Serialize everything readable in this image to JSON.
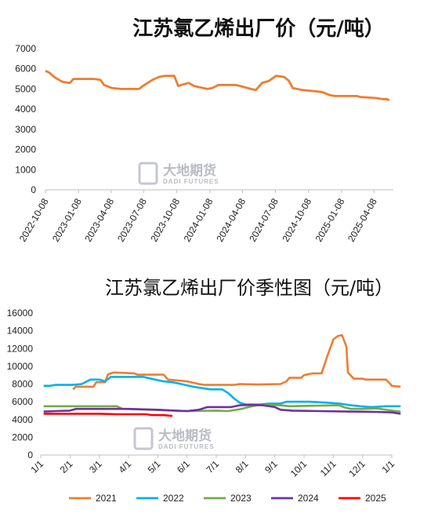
{
  "watermark": {
    "cn": "大地期货",
    "en": "DADI FUTURES"
  },
  "chart_data": [
    {
      "type": "line",
      "title": "江苏氯乙烯出厂价（元/吨）",
      "ylim": [
        0,
        7000
      ],
      "yticks": [
        "0",
        "1000",
        "2000",
        "3000",
        "4000",
        "5000",
        "6000",
        "7000"
      ],
      "xlim": [
        "2022-10-08",
        "2025-06-01"
      ],
      "xticks": [
        "2022-10-08",
        "2023-01-08",
        "2023-04-08",
        "2023-07-08",
        "2023-10-08",
        "2024-01-08",
        "2024-04-08",
        "2024-07-08",
        "2024-10-08",
        "2025-01-08",
        "2025-04-08"
      ],
      "grid": false,
      "color": "#ed7d31",
      "points": [
        [
          "2022-10-08",
          5900
        ],
        [
          "2022-10-20",
          5800
        ],
        [
          "2022-11-01",
          5600
        ],
        [
          "2022-11-15",
          5450
        ],
        [
          "2022-11-25",
          5350
        ],
        [
          "2022-12-15",
          5300
        ],
        [
          "2022-12-25",
          5500
        ],
        [
          "2023-02-20",
          5500
        ],
        [
          "2023-03-10",
          5450
        ],
        [
          "2023-03-20",
          5200
        ],
        [
          "2023-04-10",
          5050
        ],
        [
          "2023-05-05",
          5000
        ],
        [
          "2023-06-25",
          5000
        ],
        [
          "2023-07-10",
          5200
        ],
        [
          "2023-08-01",
          5450
        ],
        [
          "2023-08-20",
          5600
        ],
        [
          "2023-09-05",
          5650
        ],
        [
          "2023-10-01",
          5650
        ],
        [
          "2023-10-12",
          5150
        ],
        [
          "2023-10-20",
          5200
        ],
        [
          "2023-11-10",
          5300
        ],
        [
          "2023-11-25",
          5150
        ],
        [
          "2024-01-01",
          5000
        ],
        [
          "2024-01-15",
          5050
        ],
        [
          "2024-02-01",
          5200
        ],
        [
          "2024-03-20",
          5200
        ],
        [
          "2024-04-01",
          5150
        ],
        [
          "2024-05-01",
          5000
        ],
        [
          "2024-05-15",
          4950
        ],
        [
          "2024-06-01",
          5300
        ],
        [
          "2024-06-20",
          5400
        ],
        [
          "2024-07-10",
          5650
        ],
        [
          "2024-08-01",
          5600
        ],
        [
          "2024-08-15",
          5400
        ],
        [
          "2024-08-25",
          5050
        ],
        [
          "2024-09-20",
          4950
        ],
        [
          "2024-10-20",
          4900
        ],
        [
          "2024-11-15",
          4850
        ],
        [
          "2024-12-05",
          4700
        ],
        [
          "2024-12-20",
          4650
        ],
        [
          "2025-02-20",
          4650
        ],
        [
          "2025-03-01",
          4600
        ],
        [
          "2025-04-15",
          4550
        ],
        [
          "2025-05-01",
          4500
        ],
        [
          "2025-05-15",
          4500
        ],
        [
          "2025-05-20",
          4420
        ]
      ]
    },
    {
      "type": "line",
      "title": "江苏氯乙烯出厂价季性图（元/吨）",
      "ylim": [
        0,
        16000
      ],
      "yticks": [
        "0",
        "2000",
        "4000",
        "6000",
        "8000",
        "10000",
        "12000",
        "14000",
        "16000"
      ],
      "categories": [
        "1/1",
        "2/1",
        "3/1",
        "4/1",
        "5/1",
        "6/1",
        "7/1",
        "8/1",
        "9/1",
        "10/1",
        "11/1",
        "12/1",
        "1/1"
      ],
      "grid": false,
      "legend": "bottom",
      "series": [
        {
          "name": "2021",
          "color": "#ed7d31",
          "points": [
            [
              1.1,
              7400
            ],
            [
              1.2,
              7700
            ],
            [
              1.8,
              7700
            ],
            [
              1.9,
              8200
            ],
            [
              2.2,
              8200
            ],
            [
              2.3,
              9100
            ],
            [
              2.5,
              9300
            ],
            [
              3.2,
              9200
            ],
            [
              3.3,
              9050
            ],
            [
              4.2,
              9050
            ],
            [
              4.35,
              8500
            ],
            [
              5.0,
              8300
            ],
            [
              5.4,
              8000
            ],
            [
              5.6,
              7900
            ],
            [
              6.6,
              7900
            ],
            [
              6.8,
              8000
            ],
            [
              7.4,
              7950
            ],
            [
              8.2,
              8000
            ],
            [
              8.4,
              8300
            ],
            [
              8.5,
              8700
            ],
            [
              8.9,
              8700
            ],
            [
              9.0,
              9000
            ],
            [
              9.3,
              9200
            ],
            [
              9.6,
              9200
            ],
            [
              9.8,
              11200
            ],
            [
              10.0,
              13000
            ],
            [
              10.15,
              13400
            ],
            [
              10.3,
              13500
            ],
            [
              10.45,
              12200
            ],
            [
              10.5,
              9300
            ],
            [
              10.7,
              8600
            ],
            [
              11.0,
              8600
            ],
            [
              11.1,
              8500
            ],
            [
              11.8,
              8500
            ],
            [
              11.95,
              8000
            ],
            [
              12.0,
              7800
            ],
            [
              12.3,
              7700
            ]
          ]
        },
        {
          "name": "2022",
          "color": "#00b0f0",
          "points": [
            [
              0.1,
              7800
            ],
            [
              0.3,
              7800
            ],
            [
              0.5,
              7900
            ],
            [
              1.1,
              7900
            ],
            [
              1.4,
              8000
            ],
            [
              1.7,
              8500
            ],
            [
              2.0,
              8500
            ],
            [
              2.2,
              8300
            ],
            [
              2.4,
              8800
            ],
            [
              3.5,
              8800
            ],
            [
              3.9,
              8500
            ],
            [
              4.2,
              8300
            ],
            [
              4.5,
              8200
            ],
            [
              4.8,
              8000
            ],
            [
              5.2,
              7700
            ],
            [
              5.6,
              7500
            ],
            [
              5.8,
              7400
            ],
            [
              6.2,
              7400
            ],
            [
              6.4,
              7000
            ],
            [
              6.6,
              6400
            ],
            [
              6.8,
              5900
            ],
            [
              7.0,
              5700
            ],
            [
              7.5,
              5700
            ],
            [
              7.8,
              5800
            ],
            [
              8.2,
              5800
            ],
            [
              8.4,
              6000
            ],
            [
              9.2,
              6000
            ],
            [
              9.8,
              5900
            ],
            [
              10.2,
              5800
            ],
            [
              10.6,
              5600
            ],
            [
              10.9,
              5500
            ],
            [
              11.3,
              5400
            ],
            [
              11.8,
              5500
            ],
            [
              12.3,
              5500
            ]
          ]
        },
        {
          "name": "2023",
          "color": "#70ad47",
          "points": [
            [
              0.1,
              5500
            ],
            [
              2.6,
              5500
            ],
            [
              2.8,
              5200
            ],
            [
              3.3,
              5150
            ],
            [
              4.2,
              5050
            ],
            [
              5.0,
              4950
            ],
            [
              6.0,
              5000
            ],
            [
              6.4,
              4950
            ],
            [
              6.8,
              5150
            ],
            [
              7.1,
              5400
            ],
            [
              7.4,
              5600
            ],
            [
              7.8,
              5650
            ],
            [
              8.2,
              5600
            ],
            [
              8.5,
              5500
            ],
            [
              9.3,
              5550
            ],
            [
              10.2,
              5600
            ],
            [
              10.4,
              5350
            ],
            [
              10.6,
              5200
            ],
            [
              11.0,
              5200
            ],
            [
              11.5,
              5250
            ],
            [
              12.0,
              5000
            ],
            [
              12.3,
              4900
            ]
          ]
        },
        {
          "name": "2024",
          "color": "#7030a0",
          "points": [
            [
              0.1,
              4900
            ],
            [
              0.5,
              4950
            ],
            [
              1.0,
              5000
            ],
            [
              1.2,
              5200
            ],
            [
              3.0,
              5200
            ],
            [
              3.4,
              5150
            ],
            [
              4.0,
              5100
            ],
            [
              4.6,
              5000
            ],
            [
              5.0,
              4950
            ],
            [
              5.4,
              5100
            ],
            [
              5.7,
              5400
            ],
            [
              6.5,
              5400
            ],
            [
              6.8,
              5600
            ],
            [
              7.2,
              5650
            ],
            [
              7.6,
              5600
            ],
            [
              8.0,
              5400
            ],
            [
              8.2,
              5100
            ],
            [
              8.6,
              5000
            ],
            [
              9.5,
              4950
            ],
            [
              10.5,
              4900
            ],
            [
              11.5,
              4850
            ],
            [
              12.0,
              4800
            ],
            [
              12.3,
              4650
            ]
          ]
        },
        {
          "name": "2025",
          "color": "#ff0000",
          "points": [
            [
              0.1,
              4650
            ],
            [
              1.0,
              4650
            ],
            [
              2.0,
              4650
            ],
            [
              2.6,
              4600
            ],
            [
              3.6,
              4600
            ],
            [
              3.8,
              4500
            ],
            [
              4.2,
              4500
            ],
            [
              4.5,
              4400
            ]
          ]
        }
      ]
    }
  ]
}
